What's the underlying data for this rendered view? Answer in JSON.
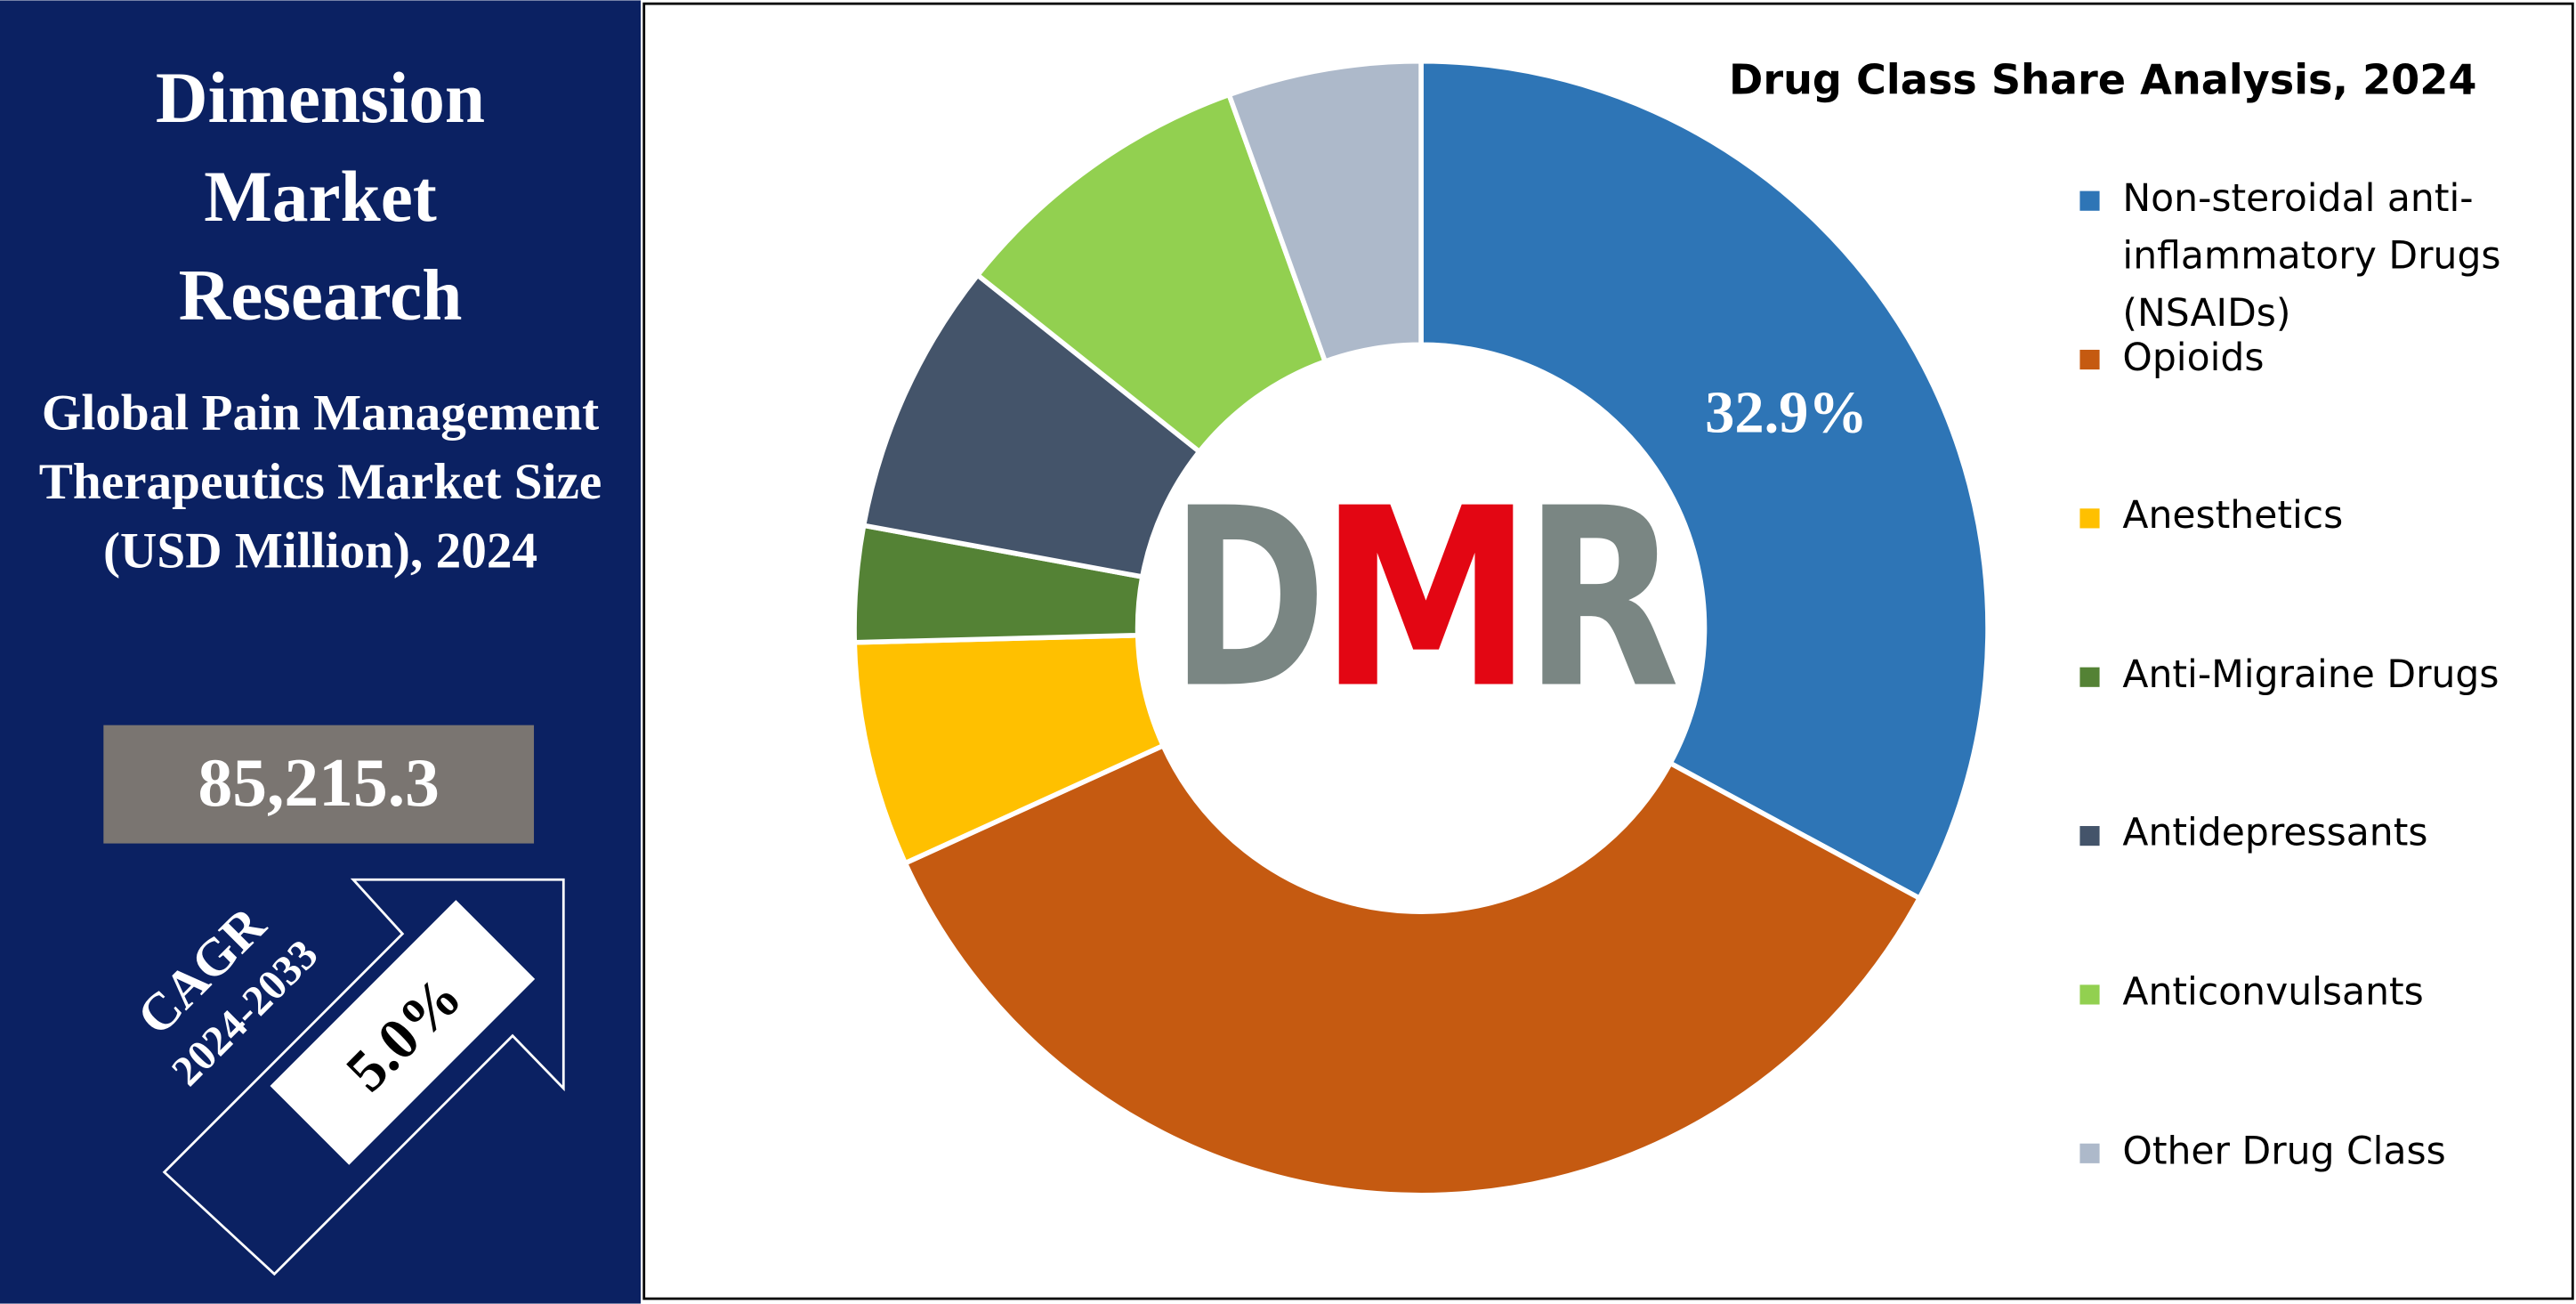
{
  "brand": "Dimension Market Research",
  "market_title": "Global Pain Management Therapeutics Market Size (USD Million), 2024",
  "market_value": "85,215.3",
  "cagr_label": "CAGR",
  "cagr_period": "2024-2033",
  "cagr_value": "5.0%",
  "logo": {
    "letters": [
      "D",
      "M",
      "R"
    ]
  },
  "chart_data": {
    "type": "pie",
    "title": "Drug Class Share Analysis, 2024",
    "categories": [
      "Non-steroidal anti-inflammatory Drugs (NSAIDs)",
      "Opioids",
      "Anesthetics",
      "Anti-Migraine Drugs",
      "Antidepressants",
      "Anticonvulsants",
      "Other Drug Class"
    ],
    "values": [
      32.9,
      35.3,
      6.4,
      3.3,
      7.8,
      8.8,
      5.5
    ],
    "value_labels": [
      "32.9%",
      null,
      null,
      null,
      null,
      null,
      null
    ],
    "colors": [
      "#2e75b6",
      "#c55a11",
      "#ffc000",
      "#548235",
      "#44546a",
      "#92d050",
      "#adb9ca"
    ],
    "hole": 0.5,
    "legend": "right"
  }
}
